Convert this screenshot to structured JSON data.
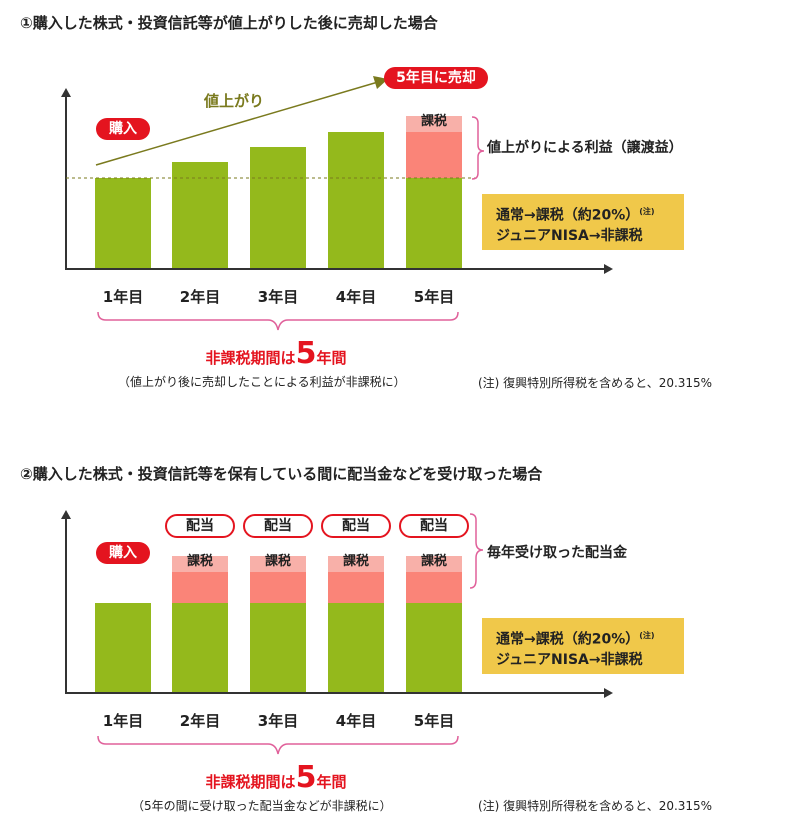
{
  "colors": {
    "bar": "#94b91c",
    "tax": "#f8b0a9",
    "gain": "#fa8478",
    "accent": "#e4141f",
    "box": "#f0c84a",
    "arrow": "#7a7a1e"
  },
  "section1": {
    "title": "①購入した株式・投資信託等が値上がりした後に売却した場合",
    "purchase_label": "購入",
    "rise_label": "値上がり",
    "sell_label": "5年目に売却",
    "tax_label": "課税",
    "gain_label": "値上がりによる利益（譲渡益）",
    "box_line1": "通常→課税（約20%）",
    "box_note_mark": "(注)",
    "box_line2": "ジュニアNISA→非課税",
    "years": [
      "1年目",
      "2年目",
      "3年目",
      "4年目",
      "5年目"
    ],
    "bar_levels": [
      0.46,
      0.53,
      0.61,
      0.69,
      0.78
    ],
    "period_prefix": "非課税期間は",
    "period_number": "5",
    "period_suffix": "年間",
    "period_sub": "（値上がり後に売却したことによる利益が非課税に）",
    "footnote": "(注) 復興特別所得税を含めると、20.315%"
  },
  "section2": {
    "title": "②購入した株式・投資信託等を保有している間に配当金などを受け取った場合",
    "purchase_label": "購入",
    "dividend_label": "配当",
    "tax_label": "課税",
    "dividend_brace_label": "毎年受け取った配当金",
    "box_line1": "通常→課税（約20%）",
    "box_note_mark": "(注)",
    "box_line2": "ジュニアNISA→非課税",
    "years": [
      "1年目",
      "2年目",
      "3年目",
      "4年目",
      "5年目"
    ],
    "period_prefix": "非課税期間は",
    "period_number": "5",
    "period_suffix": "年間",
    "period_sub": "（5年の間に受け取った配当金などが非課税に）",
    "footnote": "(注) 復興特別所得税を含めると、20.315%"
  }
}
